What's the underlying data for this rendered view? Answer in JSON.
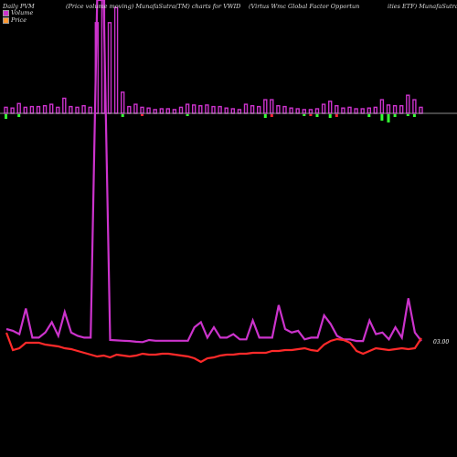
{
  "header": {
    "left": "Daily PVM",
    "center_left": "(Price volume moving) MunafaSutra(TM) charts for VWID",
    "center_right": "(Virtus Wmc Global Factor Opportun",
    "right": "ities ETF) MunafaSutra"
  },
  "legend": [
    {
      "label": "Volume",
      "color": "#cc33cc"
    },
    {
      "label": "Price",
      "color": "#ff9933"
    }
  ],
  "price_label": "03.00",
  "colors": {
    "volume_bar": "#cc33cc",
    "volume_up": "#33ff33",
    "volume_down": "#ff2233",
    "volume_line": "#cc33cc",
    "price_line": "#ff2a2a",
    "axis_line": "#bbbbbb",
    "background": "#000000"
  },
  "chart_data": {
    "type": "bar",
    "title": "Daily PVM",
    "series": [
      {
        "name": "Volume",
        "values": [
          8,
          7,
          13,
          8,
          9,
          9,
          10,
          12,
          8,
          20,
          9,
          8,
          10,
          8,
          120,
          150,
          120,
          140,
          28,
          9,
          12,
          8,
          7,
          5,
          6,
          6,
          5,
          8,
          12,
          11,
          10,
          11,
          9,
          9,
          7,
          6,
          5,
          12,
          10,
          9,
          18,
          18,
          10,
          9,
          7,
          6,
          5,
          5,
          6,
          12,
          16,
          10,
          7,
          8,
          6,
          6,
          7,
          8,
          18,
          11,
          10,
          10,
          24,
          18,
          8
        ]
      },
      {
        "name": "Price direction",
        "values": [
          -5,
          0,
          3,
          0,
          0,
          0,
          0,
          0,
          0,
          0,
          0,
          0,
          0,
          0,
          0,
          0,
          0,
          0,
          -3,
          0,
          0,
          -2,
          0,
          0,
          0,
          0,
          0,
          0,
          -2,
          0,
          0,
          0,
          0,
          0,
          0,
          0,
          0,
          0,
          0,
          0,
          -4,
          -3,
          0,
          0,
          0,
          0,
          -2,
          -2,
          -3,
          0,
          -4,
          -3,
          0,
          0,
          0,
          0,
          -3,
          0,
          -7,
          -9,
          -3,
          0,
          -2,
          -3,
          0
        ]
      },
      {
        "name": "Volume line",
        "values": [
          4,
          3.5,
          2.5,
          10,
          1.5,
          1.5,
          3,
          6,
          2,
          9,
          3,
          2,
          1.5,
          1.5,
          100,
          100,
          0.8,
          0.7,
          0.6,
          0.5,
          0.3,
          0.2,
          0.8,
          0.6,
          0.6,
          0.6,
          0.6,
          0.6,
          0.6,
          4.5,
          6,
          1.5,
          4.5,
          1.5,
          1.5,
          2.5,
          1,
          1,
          6.5,
          1.5,
          1.5,
          1.5,
          11,
          4,
          3,
          3.5,
          1,
          1.5,
          1.5,
          8,
          5.5,
          2,
          1,
          1,
          0.5,
          0.5,
          6.5,
          2.5,
          3,
          1,
          4.5,
          1.5,
          13,
          3,
          0.5
        ]
      },
      {
        "name": "Price",
        "values": [
          103.6,
          101.7,
          101.9,
          102.5,
          102.5,
          102.5,
          102.3,
          102.2,
          102.1,
          101.9,
          101.8,
          101.6,
          101.4,
          101.2,
          101.0,
          101.1,
          100.9,
          101.2,
          101.1,
          101.0,
          101.1,
          101.3,
          101.2,
          101.2,
          101.3,
          101.3,
          101.2,
          101.1,
          101.0,
          100.8,
          100.4,
          100.8,
          100.9,
          101.1,
          101.2,
          101.2,
          101.3,
          101.3,
          101.4,
          101.4,
          101.4,
          101.6,
          101.6,
          101.7,
          101.7,
          101.8,
          101.9,
          101.7,
          101.6,
          102.3,
          102.7,
          102.9,
          102.8,
          102.5,
          101.6,
          101.3,
          101.6,
          101.9,
          101.8,
          101.7,
          101.8,
          101.9,
          101.8,
          101.9,
          103.0
        ]
      }
    ],
    "ylim": [
      100,
      104
    ],
    "legend": "top-left",
    "grid": false
  }
}
